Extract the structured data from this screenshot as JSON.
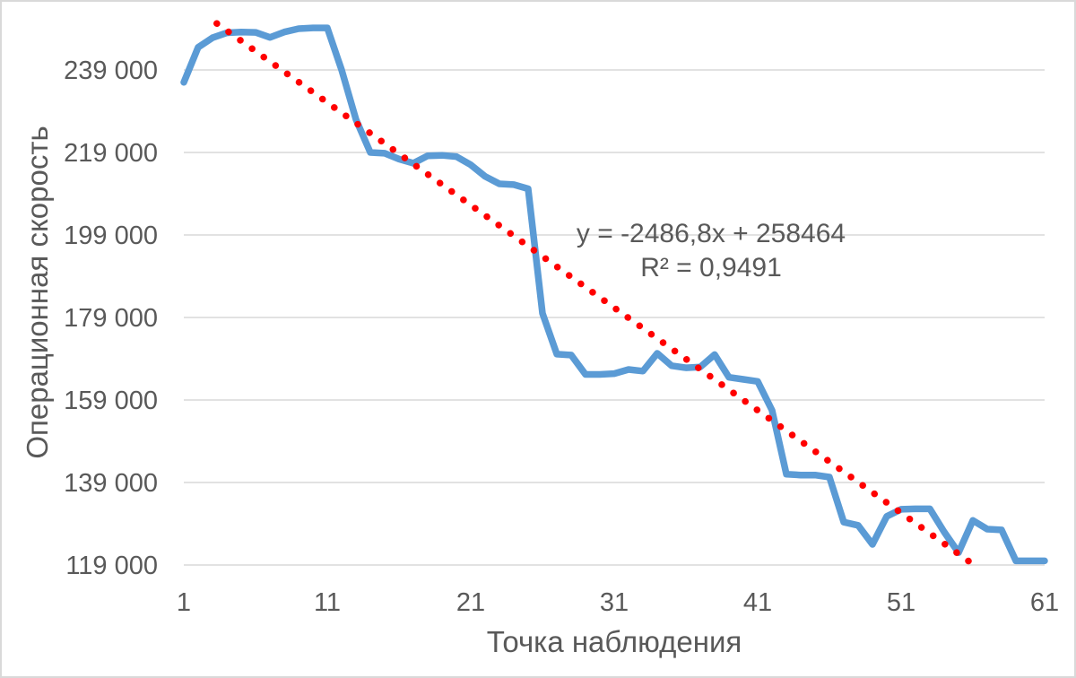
{
  "chart_data": {
    "type": "line",
    "title": "",
    "xlabel": "Точка наблюдения",
    "ylabel": "Операционная скорость",
    "x_ticks": [
      1,
      11,
      21,
      31,
      41,
      51,
      61
    ],
    "y_tick_labels": [
      "119 000",
      "139 000",
      "159 000",
      "179 000",
      "199 000",
      "219 000",
      "239 000"
    ],
    "y_tick_values": [
      119000,
      139000,
      159000,
      179000,
      199000,
      219000,
      239000
    ],
    "xlim": [
      1,
      61
    ],
    "ylim": [
      119000,
      253800
    ],
    "grid": "horizontal",
    "legend": "none",
    "series": [
      {
        "name": "Операционная скорость",
        "color": "#5B9BD5",
        "x_start": 1,
        "x_step": 1,
        "values": [
          236000,
          244500,
          246800,
          248000,
          248200,
          248100,
          246900,
          248200,
          249000,
          249200,
          249200,
          239000,
          227000,
          219000,
          218800,
          217400,
          216400,
          218200,
          218300,
          218000,
          216000,
          213200,
          211400,
          211200,
          210200,
          180000,
          170100,
          169900,
          165200,
          165200,
          165400,
          166400,
          166000,
          170300,
          167300,
          166800,
          167000,
          170000,
          164500,
          164000,
          163500,
          156500,
          141000,
          140800,
          140800,
          140300,
          129400,
          128600,
          124000,
          130800,
          132500,
          132600,
          132600,
          127000,
          122000,
          129800,
          127700,
          127500,
          120000,
          120000,
          120000
        ]
      }
    ],
    "trendline": {
      "type": "linear",
      "style": "dotted",
      "color": "#FF0000",
      "slope": -2486.8,
      "intercept": 258464,
      "r2": 0.9491,
      "x_visible_start": 3.3,
      "x_visible_end": 56.2
    },
    "colors": {
      "series_blue": "#5B9BD5",
      "trendline_red": "#FF0000",
      "text_gray": "#595959",
      "gridline_gray": "#D9D9D9",
      "border_gray": "#D9D9D9",
      "background": "#FFFFFF"
    }
  },
  "annotation": {
    "line1": "y = -2486,8x + 258464",
    "line2": "R² = 0,9491"
  }
}
